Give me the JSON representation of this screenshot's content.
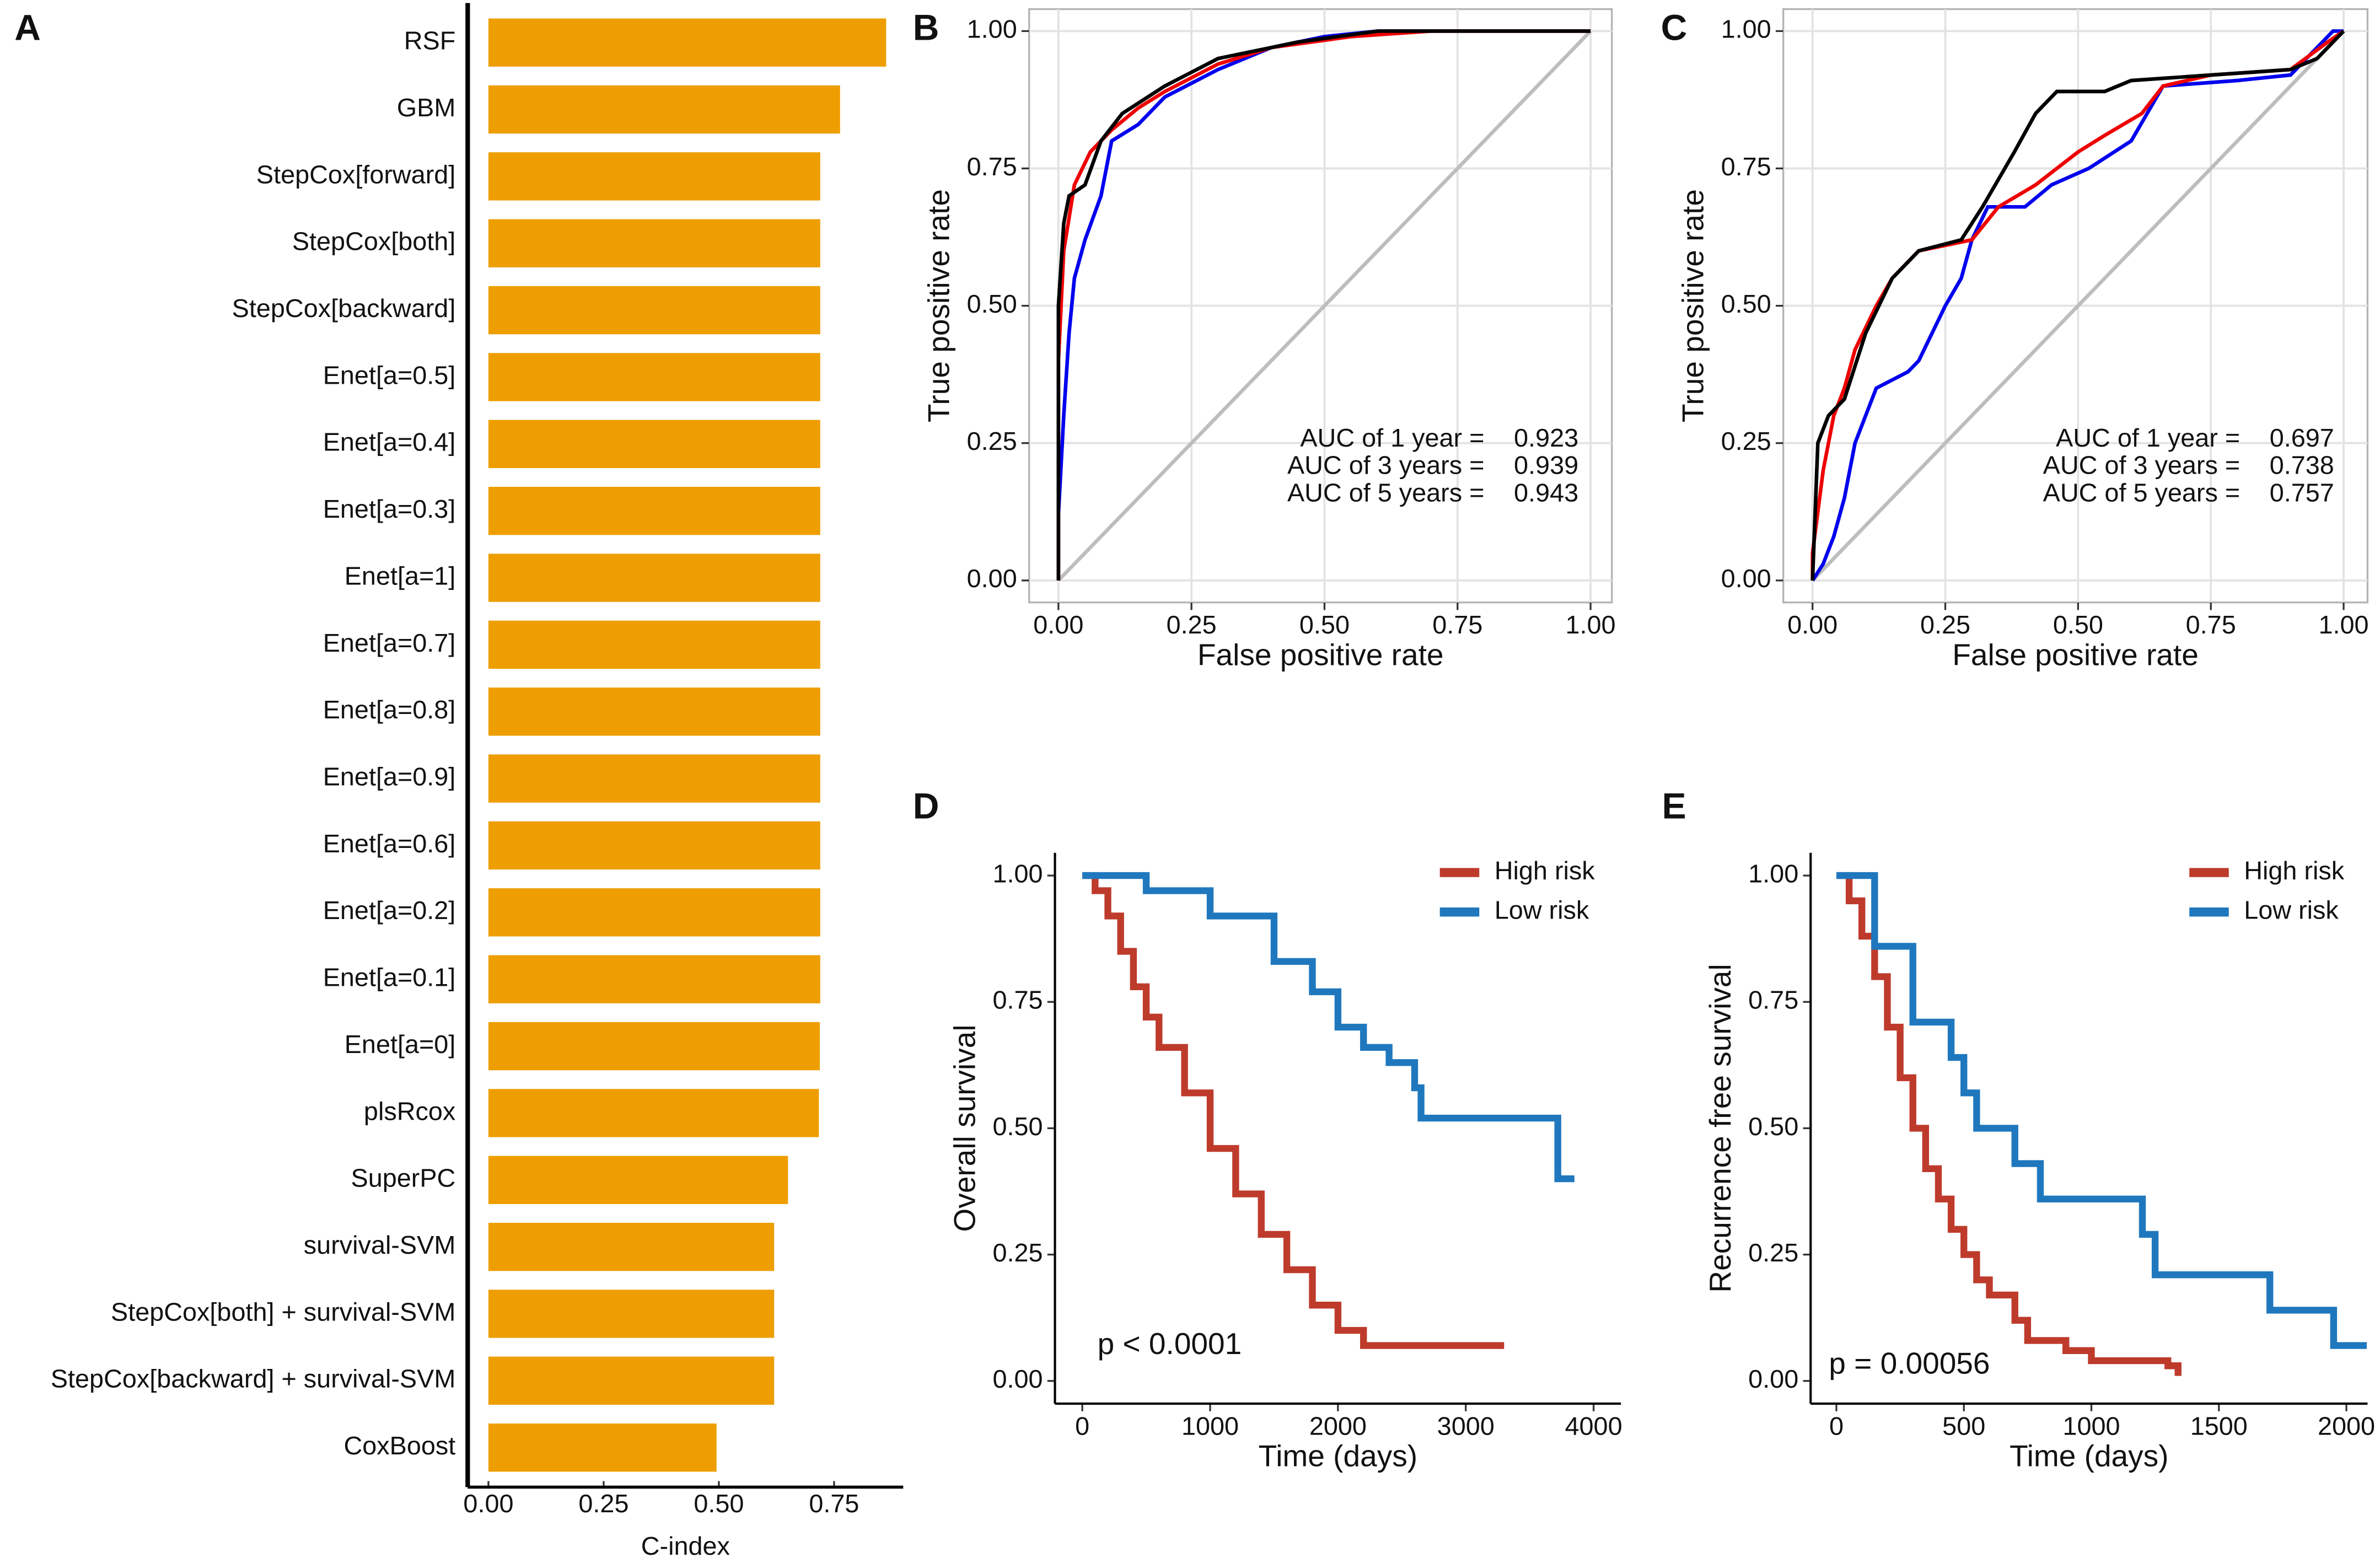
{
  "chart_data": [
    {
      "type": "bar",
      "orientation": "horizontal",
      "panel_label": "A",
      "xlabel": "C-index",
      "color": "#EE9E00",
      "categories": [
        "RSF",
        "GBM",
        "StepCox[forward]",
        "StepCox[both]",
        "StepCox[backward]",
        "Enet[a=0.5]",
        "Enet[a=0.4]",
        "Enet[a=0.3]",
        "Enet[a=1]",
        "Enet[a=0.7]",
        "Enet[a=0.8]",
        "Enet[a=0.9]",
        "Enet[a=0.6]",
        "Enet[a=0.2]",
        "Enet[a=0.1]",
        "Enet[a=0]",
        "plsRcox",
        "SuperPC",
        "survival-SVM",
        "StepCox[both] + survival-SVM",
        "StepCox[backward] + survival-SVM",
        "CoxBoost"
      ],
      "values": [
        0.863,
        0.763,
        0.72,
        0.72,
        0.72,
        0.72,
        0.72,
        0.72,
        0.72,
        0.72,
        0.72,
        0.72,
        0.72,
        0.72,
        0.72,
        0.719,
        0.717,
        0.65,
        0.62,
        0.62,
        0.62,
        0.495
      ],
      "xlim": [
        -0.045,
        0.9
      ],
      "xticks": [
        {
          "value": 0,
          "label": "0.00"
        },
        {
          "value": 0.25,
          "label": "0.25"
        },
        {
          "value": 0.5,
          "label": "0.50"
        },
        {
          "value": 0.75,
          "label": "0.75"
        }
      ],
      "grid": false
    },
    {
      "type": "line",
      "panel_label": "B",
      "xlabel": "False positive rate",
      "ylabel": "True positive rate",
      "grid": true,
      "diagonal": true,
      "xlim": [
        -0.055,
        1.04
      ],
      "ylim": [
        -0.04,
        1.04
      ],
      "xticks": [
        {
          "value": 0,
          "label": "0.00"
        },
        {
          "value": 0.25,
          "label": "0.25"
        },
        {
          "value": 0.5,
          "label": "0.50"
        },
        {
          "value": 0.75,
          "label": "0.75"
        },
        {
          "value": 1,
          "label": "1.00"
        }
      ],
      "yticks": [
        {
          "value": 0,
          "label": "0.00"
        },
        {
          "value": 0.25,
          "label": "0.25"
        },
        {
          "value": 0.5,
          "label": "0.50"
        },
        {
          "value": 0.75,
          "label": "0.75"
        },
        {
          "value": 1,
          "label": "1.00"
        }
      ],
      "series": [
        {
          "name": "AUC of 1 year =",
          "auc": 0.923,
          "color": "#0000EE",
          "x": [
            0,
            0,
            0.01,
            0.02,
            0.03,
            0.05,
            0.08,
            0.1,
            0.15,
            0.2,
            0.3,
            0.4,
            0.5,
            0.6,
            1
          ],
          "y": [
            0,
            0.12,
            0.3,
            0.45,
            0.55,
            0.62,
            0.7,
            0.8,
            0.83,
            0.88,
            0.93,
            0.97,
            0.99,
            1,
            1
          ]
        },
        {
          "name": "AUC of 3 years =",
          "auc": 0.939,
          "color": "#EE0000",
          "x": [
            0,
            0,
            0.01,
            0.03,
            0.06,
            0.1,
            0.15,
            0.2,
            0.3,
            0.4,
            0.55,
            0.7,
            1
          ],
          "y": [
            0,
            0.4,
            0.6,
            0.72,
            0.78,
            0.82,
            0.86,
            0.89,
            0.94,
            0.97,
            0.99,
            1,
            1
          ]
        },
        {
          "name": "AUC of 5 years =",
          "auc": 0.943,
          "color": "#000000",
          "x": [
            0,
            0,
            0.01,
            0.02,
            0.05,
            0.08,
            0.12,
            0.2,
            0.3,
            0.45,
            0.6,
            1
          ],
          "y": [
            0,
            0.5,
            0.65,
            0.7,
            0.72,
            0.8,
            0.85,
            0.9,
            0.95,
            0.98,
            1,
            1
          ]
        }
      ]
    },
    {
      "type": "line",
      "panel_label": "C",
      "xlabel": "False positive rate",
      "ylabel": "True positive rate",
      "grid": true,
      "diagonal": true,
      "xlim": [
        -0.055,
        1.045
      ],
      "ylim": [
        -0.04,
        1.04
      ],
      "xticks": [
        {
          "value": 0,
          "label": "0.00"
        },
        {
          "value": 0.25,
          "label": "0.25"
        },
        {
          "value": 0.5,
          "label": "0.50"
        },
        {
          "value": 0.75,
          "label": "0.75"
        },
        {
          "value": 1,
          "label": "1.00"
        }
      ],
      "yticks": [
        {
          "value": 0,
          "label": "0.00"
        },
        {
          "value": 0.25,
          "label": "0.25"
        },
        {
          "value": 0.5,
          "label": "0.50"
        },
        {
          "value": 0.75,
          "label": "0.75"
        },
        {
          "value": 1,
          "label": "1.00"
        }
      ],
      "series": [
        {
          "name": "AUC of 1 year =",
          "auc": 0.697,
          "color": "#0000EE",
          "x": [
            0,
            0.02,
            0.04,
            0.06,
            0.08,
            0.1,
            0.12,
            0.18,
            0.2,
            0.25,
            0.28,
            0.3,
            0.33,
            0.4,
            0.45,
            0.52,
            0.6,
            0.66,
            0.8,
            0.9,
            0.95,
            0.98,
            1
          ],
          "y": [
            0,
            0.03,
            0.08,
            0.15,
            0.25,
            0.3,
            0.35,
            0.38,
            0.4,
            0.5,
            0.55,
            0.62,
            0.68,
            0.68,
            0.72,
            0.75,
            0.8,
            0.9,
            0.91,
            0.92,
            0.97,
            1,
            1
          ]
        },
        {
          "name": "AUC of 3 years =",
          "auc": 0.738,
          "color": "#EE0000",
          "x": [
            0,
            0,
            0.02,
            0.04,
            0.06,
            0.08,
            0.12,
            0.15,
            0.2,
            0.3,
            0.35,
            0.42,
            0.5,
            0.55,
            0.62,
            0.66,
            0.75,
            0.9,
            0.97,
            1
          ],
          "y": [
            0,
            0.05,
            0.2,
            0.3,
            0.35,
            0.42,
            0.5,
            0.55,
            0.6,
            0.62,
            0.68,
            0.72,
            0.78,
            0.81,
            0.85,
            0.9,
            0.92,
            0.93,
            0.98,
            1
          ]
        },
        {
          "name": "AUC of 5 years =",
          "auc": 0.757,
          "color": "#000000",
          "x": [
            0,
            0.01,
            0.03,
            0.06,
            0.1,
            0.15,
            0.2,
            0.28,
            0.32,
            0.38,
            0.42,
            0.46,
            0.55,
            0.6,
            0.75,
            0.9,
            0.95,
            1
          ],
          "y": [
            0,
            0.25,
            0.3,
            0.33,
            0.45,
            0.55,
            0.6,
            0.62,
            0.68,
            0.78,
            0.85,
            0.89,
            0.89,
            0.91,
            0.92,
            0.93,
            0.95,
            1
          ]
        }
      ]
    },
    {
      "type": "line",
      "step": true,
      "panel_label": "D",
      "xlabel": "Time (days)",
      "ylabel": "Overall survival",
      "grid": false,
      "legend": "upper right",
      "annotation": "p < 0.0001",
      "xlim": [
        -214,
        4214
      ],
      "ylim": [
        -0.045,
        1.045
      ],
      "xticks": [
        0,
        1000,
        2000,
        3000,
        4000
      ],
      "yticks": [
        {
          "value": 0,
          "label": "0.00"
        },
        {
          "value": 0.25,
          "label": "0.25"
        },
        {
          "value": 0.5,
          "label": "0.50"
        },
        {
          "value": 0.75,
          "label": "0.75"
        },
        {
          "value": 1,
          "label": "1.00"
        }
      ],
      "series": [
        {
          "name": "High risk",
          "color": "#BE3B2C",
          "x": [
            0,
            100,
            200,
            300,
            400,
            500,
            600,
            800,
            1000,
            1200,
            1400,
            1600,
            1800,
            2000,
            2200,
            3300
          ],
          "y": [
            1,
            0.97,
            0.92,
            0.85,
            0.78,
            0.72,
            0.66,
            0.57,
            0.46,
            0.37,
            0.29,
            0.22,
            0.15,
            0.1,
            0.07,
            0.07
          ]
        },
        {
          "name": "Low risk",
          "color": "#1F78BE",
          "x": [
            0,
            500,
            1000,
            1500,
            1800,
            2000,
            2200,
            2400,
            2600,
            2650,
            3700,
            3720,
            3850
          ],
          "y": [
            1,
            0.97,
            0.92,
            0.83,
            0.77,
            0.7,
            0.66,
            0.63,
            0.58,
            0.52,
            0.52,
            0.4,
            0.4
          ]
        }
      ]
    },
    {
      "type": "line",
      "step": true,
      "panel_label": "E",
      "xlabel": "Time (days)",
      "ylabel": "Recurrence free survival",
      "grid": false,
      "legend": "upper right",
      "annotation": "p = 0.00056",
      "xlim": [
        -101,
        2083
      ],
      "ylim": [
        -0.045,
        1.045
      ],
      "xticks": [
        0,
        500,
        1000,
        1500,
        2000
      ],
      "yticks": [
        {
          "value": 0,
          "label": "0.00"
        },
        {
          "value": 0.25,
          "label": "0.25"
        },
        {
          "value": 0.5,
          "label": "0.50"
        },
        {
          "value": 0.75,
          "label": "0.75"
        },
        {
          "value": 1,
          "label": "1.00"
        }
      ],
      "series": [
        {
          "name": "High risk",
          "color": "#BE3B2C",
          "x": [
            0,
            50,
            100,
            150,
            200,
            250,
            300,
            350,
            400,
            450,
            500,
            550,
            600,
            700,
            750,
            900,
            1000,
            1300,
            1340
          ],
          "y": [
            1,
            0.95,
            0.88,
            0.8,
            0.7,
            0.6,
            0.5,
            0.42,
            0.36,
            0.3,
            0.25,
            0.2,
            0.17,
            0.12,
            0.08,
            0.06,
            0.04,
            0.03,
            0.01
          ]
        },
        {
          "name": "Low risk",
          "color": "#1F78BE",
          "x": [
            0,
            150,
            150,
            300,
            300,
            450,
            450,
            500,
            550,
            700,
            700,
            800,
            1150,
            1200,
            1250,
            1700,
            1700,
            1950,
            1950,
            2080
          ],
          "y": [
            1,
            1,
            0.86,
            0.86,
            0.71,
            0.71,
            0.64,
            0.57,
            0.5,
            0.5,
            0.43,
            0.36,
            0.36,
            0.29,
            0.21,
            0.21,
            0.14,
            0.14,
            0.07,
            0.07
          ]
        }
      ]
    }
  ]
}
